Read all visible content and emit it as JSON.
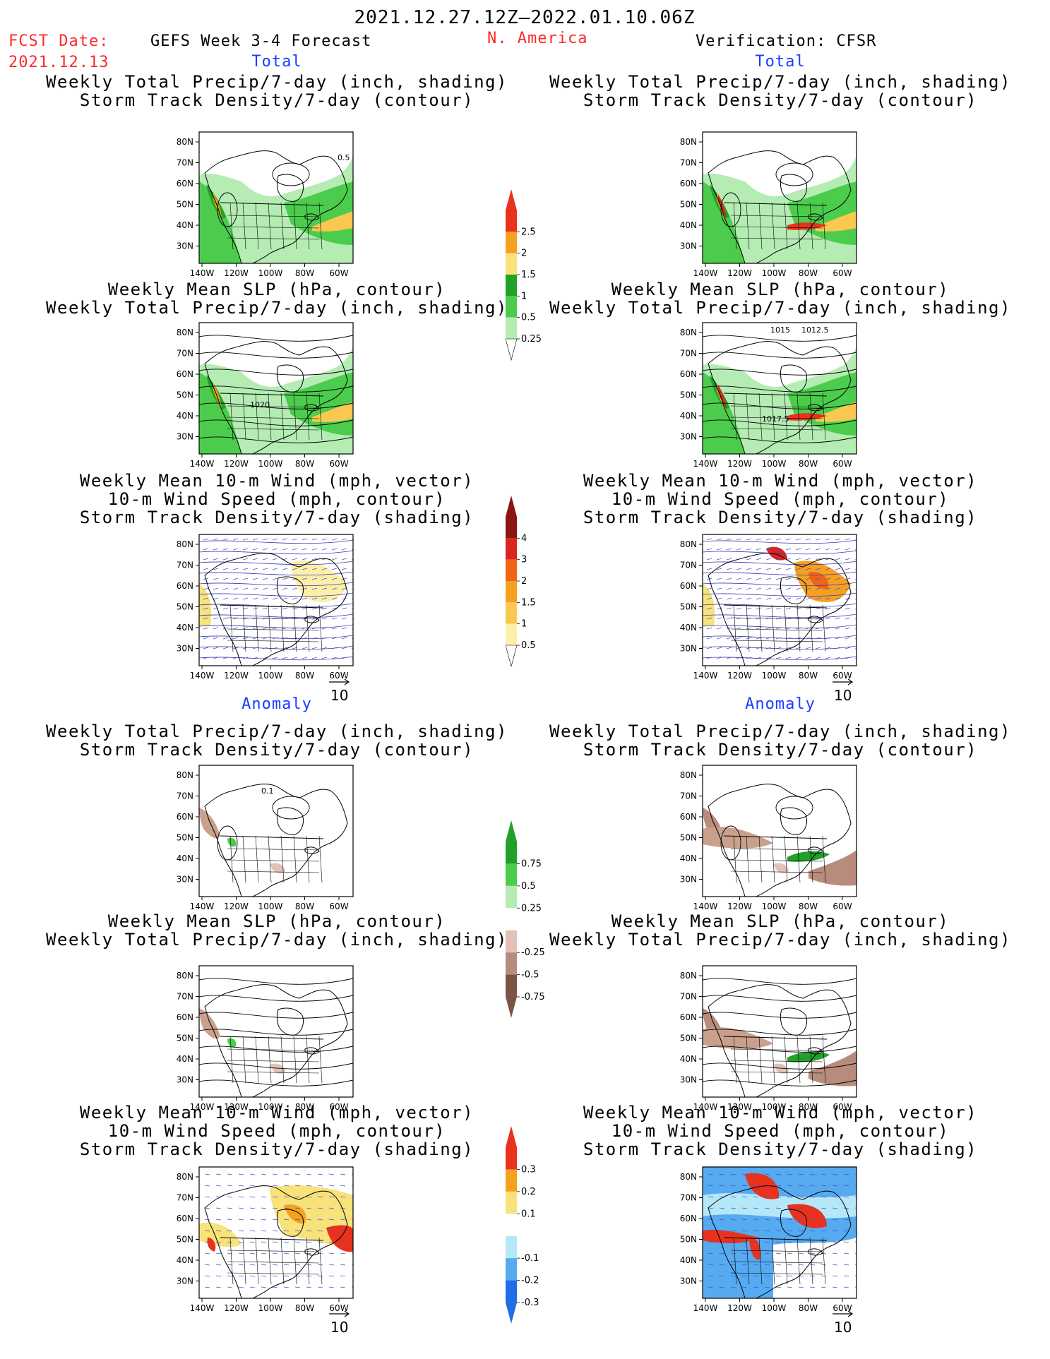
{
  "header": {
    "date_range": "2021.12.27.12Z–2022.01.10.06Z",
    "fcst_label": "FCST Date:",
    "fcst_date": "2021.12.13",
    "model": "GEFS Week 3-4 Forecast",
    "region": "N. America",
    "verification": "Verification: CFSR"
  },
  "sections": {
    "total_left": "Total",
    "total_right": "Total",
    "anomaly_left": "Anomaly",
    "anomaly_right": "Anomaly"
  },
  "titles": {
    "precip_storm": [
      "Weekly Total Precip/7-day (inch, shading)",
      "Storm Track Density/7-day (contour)"
    ],
    "slp_precip": [
      "Weekly Mean SLP (hPa, contour)",
      "Weekly Total Precip/7-day (inch, shading)"
    ],
    "wind_storm": [
      "Weekly Mean 10-m Wind (mph, vector)",
      "10-m Wind Speed (mph, contour)",
      "Storm Track Density/7-day (shading)"
    ]
  },
  "map_axes": {
    "lat_labels": [
      "80N",
      "70N",
      "60N",
      "50N",
      "40N",
      "30N"
    ],
    "lon_labels": [
      "140W",
      "120W",
      "100W",
      "80W",
      "60W"
    ]
  },
  "map_annotations": {
    "f_precip_label": "0.5",
    "f_slp_label": "1020",
    "v_slp_labels": [
      "1015",
      "1012.5",
      "1017.5"
    ],
    "f_anom_label": "0.1"
  },
  "vector_ref": "10",
  "colorbars": {
    "total_precip": {
      "labels": [
        "2.5",
        "2",
        "1.5",
        "1",
        "0.5",
        "0.25"
      ],
      "colors": [
        "#e8321e",
        "#f5a21e",
        "#f8e27a",
        "#22a02a",
        "#4ccc4c",
        "#b4ecb4"
      ]
    },
    "total_storm": {
      "labels": [
        "4",
        "3",
        "2",
        "1.5",
        "1",
        "0.5"
      ],
      "colors": [
        "#8c1414",
        "#d7261e",
        "#f06414",
        "#f5a020",
        "#f8c850",
        "#fcf0a8"
      ]
    },
    "anom_precip": {
      "labels": [
        "0.75",
        "0.5",
        "0.25",
        "-0.25",
        "-0.5",
        "-0.75"
      ],
      "colors": [
        "#22a02a",
        "#4ccc4c",
        "#b4ecb4",
        "#ffffff",
        "#e2c2b8",
        "#b88c7c",
        "#7c5446"
      ]
    },
    "anom_storm": {
      "labels": [
        "0.3",
        "0.2",
        "0.1",
        "-0.1",
        "-0.2",
        "-0.3"
      ],
      "colors": [
        "#e8321e",
        "#f5a21e",
        "#f8e27a",
        "#ffffff",
        "#b4e8f8",
        "#56aaf0",
        "#1e6ee6"
      ]
    }
  },
  "colors": {
    "header_red": "#ff2a2a",
    "section_blue": "#1a3cff",
    "precip_greens": [
      "#b4ecb4",
      "#4ccc4c",
      "#22a02a"
    ],
    "brown_neg": "#c8a08c"
  }
}
